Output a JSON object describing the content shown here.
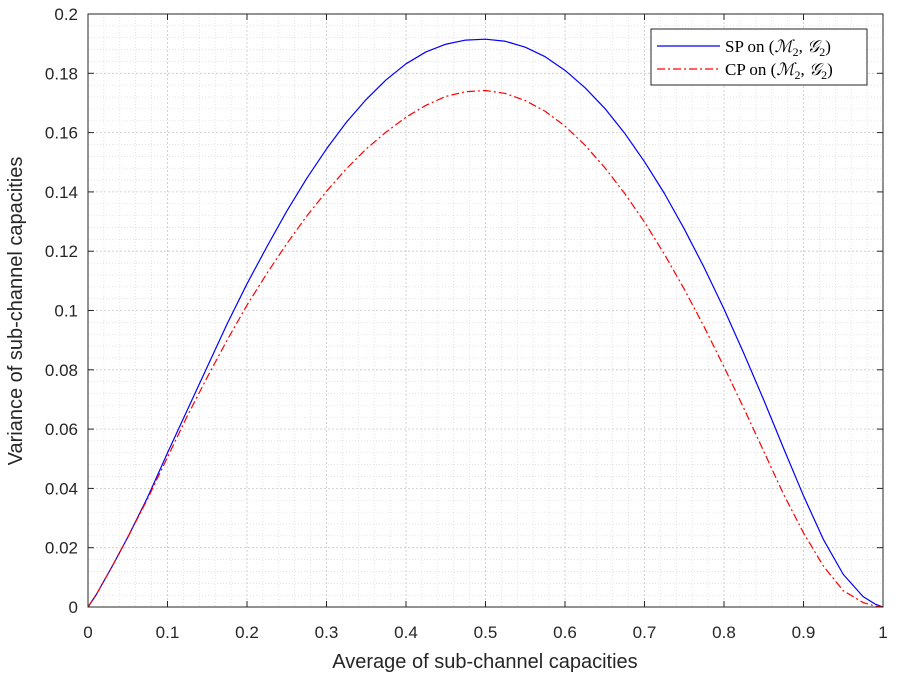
{
  "chart_data": {
    "type": "line",
    "title": "",
    "xlabel": "Average of sub-channel capacities",
    "ylabel": "Variance of sub-channel capacities",
    "xlim": [
      0,
      1
    ],
    "ylim": [
      0,
      0.2
    ],
    "xticks": [
      0,
      0.1,
      0.2,
      0.3,
      0.4,
      0.5,
      0.6,
      0.7,
      0.8,
      0.9,
      1
    ],
    "xtick_labels": [
      "0",
      "0.1",
      "0.2",
      "0.3",
      "0.4",
      "0.5",
      "0.6",
      "0.7",
      "0.8",
      "0.9",
      "1"
    ],
    "yticks": [
      0,
      0.02,
      0.04,
      0.06,
      0.08,
      0.1,
      0.12,
      0.14,
      0.16,
      0.18,
      0.2
    ],
    "ytick_labels": [
      "0",
      "0.02",
      "0.04",
      "0.06",
      "0.08",
      "0.1",
      "0.12",
      "0.14",
      "0.16",
      "0.18",
      "0.2"
    ],
    "grid": true,
    "minor_grid": true,
    "legend_position": "top-right",
    "series": [
      {
        "name": "SP on (M2, G2)",
        "legend_prefix": "SP on",
        "color": "#0000ff",
        "line_style": "solid",
        "x": [
          0,
          0.01,
          0.03,
          0.05,
          0.075,
          0.1,
          0.125,
          0.15,
          0.175,
          0.2,
          0.225,
          0.25,
          0.275,
          0.3,
          0.325,
          0.35,
          0.375,
          0.4,
          0.425,
          0.45,
          0.475,
          0.5,
          0.525,
          0.55,
          0.575,
          0.6,
          0.625,
          0.65,
          0.675,
          0.7,
          0.725,
          0.75,
          0.775,
          0.8,
          0.825,
          0.85,
          0.875,
          0.9,
          0.925,
          0.95,
          0.975,
          0.99,
          1
        ],
        "y": [
          0,
          0.004,
          0.0135,
          0.0235,
          0.037,
          0.052,
          0.0665,
          0.081,
          0.0955,
          0.109,
          0.1215,
          0.1335,
          0.1445,
          0.1545,
          0.1635,
          0.1712,
          0.1778,
          0.1832,
          0.1872,
          0.1898,
          0.1912,
          0.1915,
          0.1908,
          0.1888,
          0.1856,
          0.181,
          0.1752,
          0.1682,
          0.1598,
          0.1502,
          0.1395,
          0.1275,
          0.1145,
          0.1005,
          0.0855,
          0.0698,
          0.0535,
          0.0375,
          0.0228,
          0.011,
          0.0035,
          0.001,
          0
        ]
      },
      {
        "name": "CP on (M2, G2)",
        "legend_prefix": "CP on",
        "color": "#ff0000",
        "line_style": "dashdot",
        "x": [
          0,
          0.01,
          0.03,
          0.05,
          0.075,
          0.1,
          0.125,
          0.15,
          0.175,
          0.2,
          0.225,
          0.25,
          0.275,
          0.3,
          0.325,
          0.35,
          0.375,
          0.4,
          0.425,
          0.45,
          0.475,
          0.5,
          0.525,
          0.55,
          0.575,
          0.6,
          0.625,
          0.65,
          0.675,
          0.7,
          0.725,
          0.75,
          0.775,
          0.8,
          0.825,
          0.85,
          0.875,
          0.9,
          0.925,
          0.95,
          0.975,
          0.99,
          1
        ],
        "y": [
          0,
          0.004,
          0.0135,
          0.0235,
          0.0365,
          0.0505,
          0.0645,
          0.0775,
          0.09,
          0.1018,
          0.1125,
          0.1225,
          0.1318,
          0.1402,
          0.1478,
          0.1545,
          0.1602,
          0.1652,
          0.1692,
          0.1722,
          0.1738,
          0.1742,
          0.1732,
          0.1708,
          0.1672,
          0.1622,
          0.1558,
          0.1482,
          0.1395,
          0.1298,
          0.119,
          0.1072,
          0.0945,
          0.081,
          0.067,
          0.0525,
          0.038,
          0.025,
          0.0138,
          0.0055,
          0.0015,
          0.0003,
          0
        ]
      }
    ]
  }
}
